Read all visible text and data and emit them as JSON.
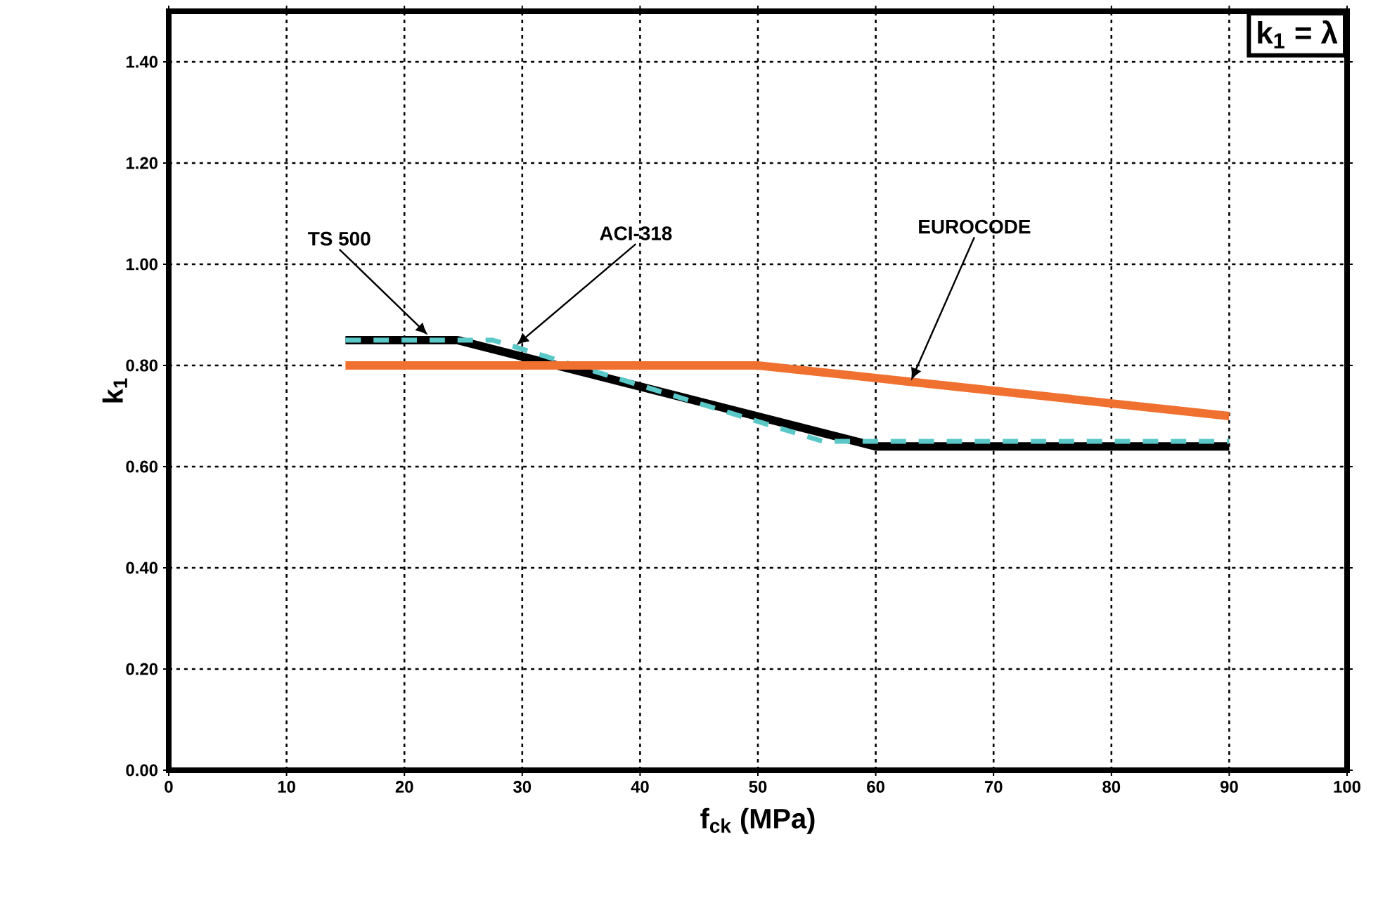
{
  "chart_data": {
    "type": "line",
    "xlabel": "f$_{ck}$ (MPa)",
    "ylabel": "k$_{1}$",
    "xlim": [
      0,
      100
    ],
    "ylim": [
      0,
      1.5
    ],
    "xticks": [
      0,
      10,
      20,
      30,
      40,
      50,
      60,
      70,
      80,
      90,
      100
    ],
    "yticks": [
      {
        "value": 0,
        "label": "0.00"
      },
      {
        "value": 0.2,
        "label": "0.20"
      },
      {
        "value": 0.4,
        "label": "0.40"
      },
      {
        "value": 0.6,
        "label": "0.60"
      },
      {
        "value": 0.8,
        "label": "0.80"
      },
      {
        "value": 1.0,
        "label": "1.00"
      },
      {
        "value": 1.2,
        "label": "1.20"
      },
      {
        "value": 1.4,
        "label": "1.40"
      }
    ],
    "grid": true,
    "series": [
      {
        "color": "#000000",
        "line_style": "solid",
        "x": [
          15,
          24.5,
          60,
          90
        ],
        "values": [
          0.85,
          0.85,
          0.64,
          0.64
        ]
      },
      {
        "color": "#5bc8c8",
        "line_style": "dashed",
        "x": [
          15,
          27.5,
          55.5,
          90
        ],
        "values": [
          0.85,
          0.85,
          0.65,
          0.65
        ]
      },
      {
        "color": "#f07030",
        "line_style": "solid",
        "x": [
          15,
          50,
          90
        ],
        "values": [
          0.8,
          0.8,
          0.7
        ]
      }
    ],
    "annotations": [
      {
        "text": "TS 500",
        "x": 22,
        "y": 0.86
      },
      {
        "text": "ACI-318",
        "x": 29.5,
        "y": 0.84
      },
      {
        "text": "EUROCODE",
        "x": 63,
        "y": 0.77
      },
      "k$_{1}$ = λ"
    ]
  }
}
